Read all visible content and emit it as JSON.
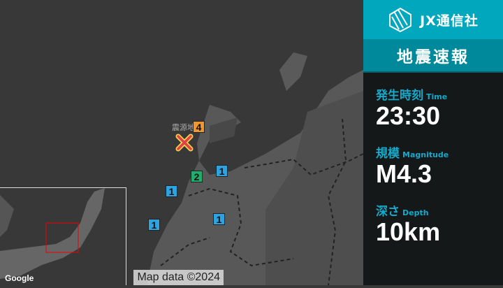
{
  "header": {
    "brand": "JX通信社",
    "logo_icon": "jx-logo-icon",
    "title": "地震速報"
  },
  "info": {
    "time": {
      "label": "発生時刻",
      "label_en": "Time",
      "value": "23:30"
    },
    "magnitude": {
      "label": "規模",
      "label_en": "Magnitude",
      "value": "M4.3"
    },
    "depth": {
      "label": "深さ",
      "label_en": "Depth",
      "value": "10km"
    }
  },
  "map": {
    "epicenter_label": "震源地",
    "intensities": [
      {
        "value": "4",
        "color": "#f0962a"
      },
      {
        "value": "2",
        "color": "#1fae6e"
      },
      {
        "value": "1",
        "color": "#2ea3e0"
      },
      {
        "value": "1",
        "color": "#2ea3e0"
      },
      {
        "value": "1",
        "color": "#2ea3e0"
      },
      {
        "value": "1",
        "color": "#2ea3e0"
      }
    ],
    "credit": "Map data ©2024",
    "google": "Google"
  },
  "colors": {
    "header": "#00a7bd",
    "band": "#00899a",
    "label": "#16a9c9",
    "epicenter": "#e0404a"
  }
}
